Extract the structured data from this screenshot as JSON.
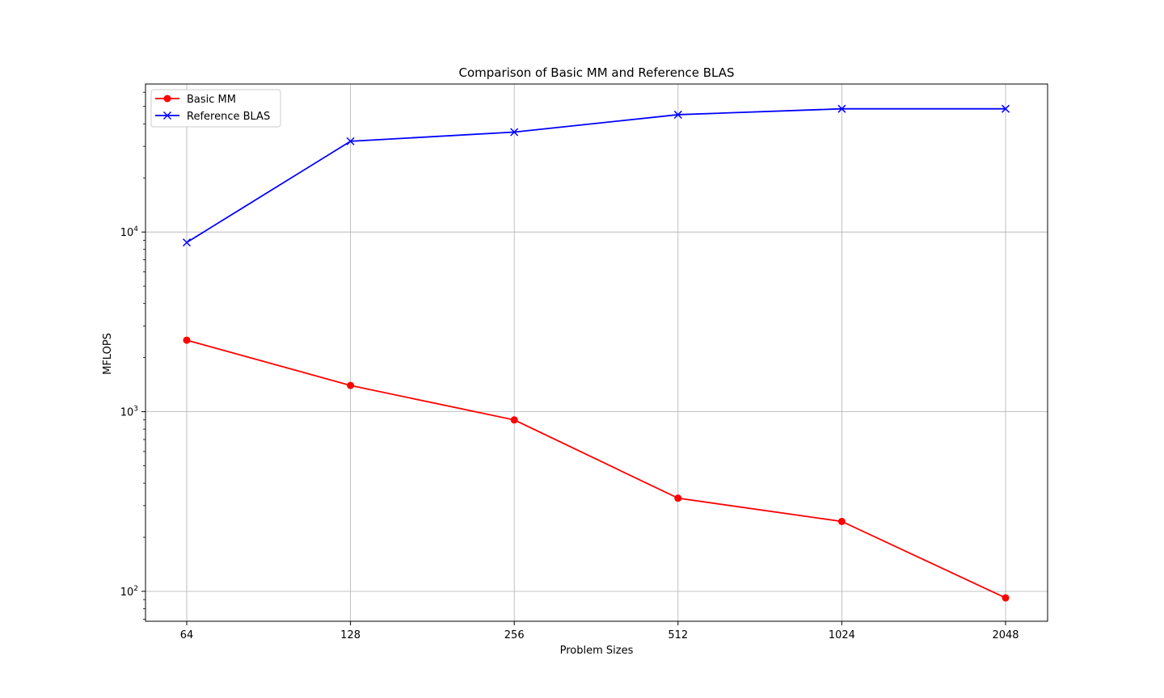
{
  "chart_data": {
    "type": "line",
    "title": "Comparison of Basic MM and Reference BLAS",
    "xlabel": "Problem Sizes",
    "ylabel": "MFLOPS",
    "categories": [
      "64",
      "128",
      "256",
      "512",
      "1024",
      "2048"
    ],
    "y_scale": "log",
    "ylim": [
      70,
      68000
    ],
    "y_ticks": [
      {
        "value": 100,
        "base": "10",
        "exp": "2"
      },
      {
        "value": 1000,
        "base": "10",
        "exp": "3"
      },
      {
        "value": 10000,
        "base": "10",
        "exp": "4"
      }
    ],
    "grid": true,
    "legend_position": "upper-left",
    "series": [
      {
        "name": "Basic MM",
        "color": "#ff0000",
        "marker": "circle",
        "values": [
          2500,
          1400,
          900,
          330,
          245,
          92
        ]
      },
      {
        "name": "Reference BLAS",
        "color": "#0000ff",
        "marker": "x",
        "values": [
          8750,
          32000,
          36000,
          45000,
          48500,
          48500
        ]
      }
    ]
  }
}
